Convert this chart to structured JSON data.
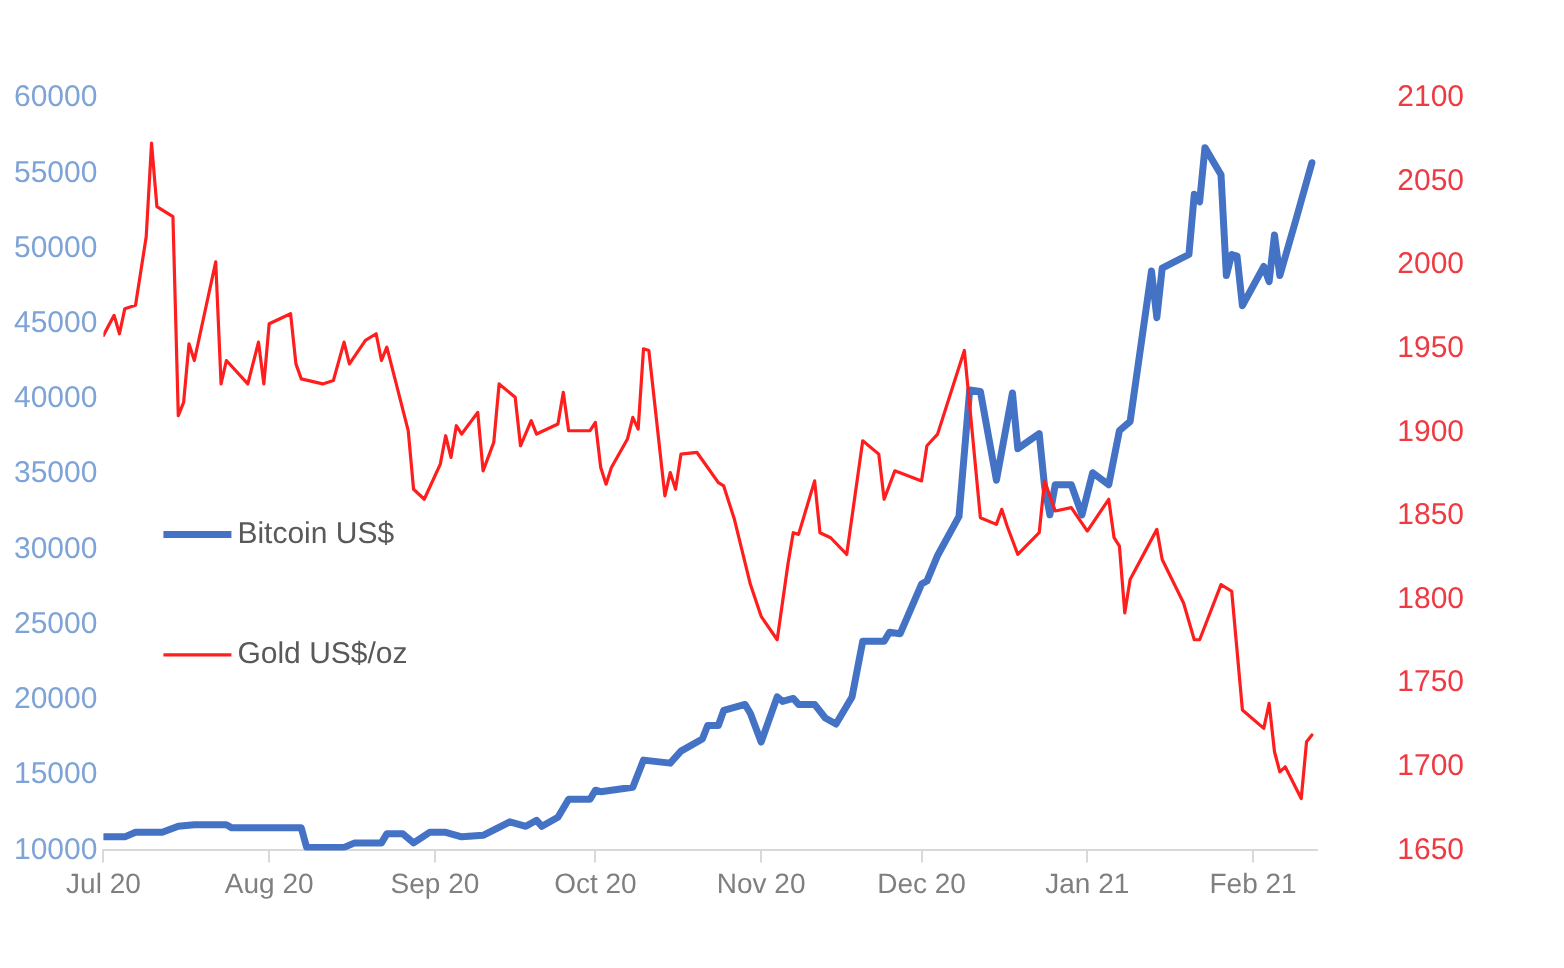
{
  "chart_data": {
    "type": "line",
    "legend": "left",
    "grid": false,
    "marker": "none",
    "line_style": "solid",
    "xlim": [
      "2020-07-01",
      "2021-02-13"
    ],
    "xticks": [
      {
        "value": "2020-07-01",
        "label": "Jul 20"
      },
      {
        "value": "2020-08-01",
        "label": "Aug 20"
      },
      {
        "value": "2020-09-01",
        "label": "Sep 20"
      },
      {
        "value": "2020-10-01",
        "label": "Oct 20"
      },
      {
        "value": "2020-11-01",
        "label": "Nov 20"
      },
      {
        "value": "2020-12-01",
        "label": "Dec 20"
      },
      {
        "value": "2021-01-01",
        "label": "Jan 21"
      },
      {
        "value": "2021-02-01",
        "label": "Feb 21"
      }
    ],
    "ylim": [
      10000,
      60000
    ],
    "yticks": [
      10000,
      15000,
      20000,
      25000,
      30000,
      35000,
      40000,
      45000,
      50000,
      55000,
      60000
    ],
    "y2lim": [
      1650,
      2100
    ],
    "y2ticks": [
      1650,
      1700,
      1750,
      1800,
      1850,
      1900,
      1950,
      2000,
      2050,
      2100
    ],
    "series": [
      {
        "name": "Bitcoin US$",
        "color": "#4472c4",
        "axis": "y",
        "x": [
          "2020-07-01",
          "2020-07-05",
          "2020-07-07",
          "2020-07-12",
          "2020-07-15",
          "2020-07-18",
          "2020-07-24",
          "2020-07-25",
          "2020-08-07",
          "2020-08-08",
          "2020-08-15",
          "2020-08-17",
          "2020-08-22",
          "2020-08-23",
          "2020-08-26",
          "2020-08-28",
          "2020-08-31",
          "2020-09-03",
          "2020-09-06",
          "2020-09-10",
          "2020-09-15",
          "2020-09-18",
          "2020-09-20",
          "2020-09-21",
          "2020-09-24",
          "2020-09-26",
          "2020-09-30",
          "2020-10-01",
          "2020-10-02",
          "2020-10-08",
          "2020-10-10",
          "2020-10-15",
          "2020-10-17",
          "2020-10-21",
          "2020-10-22",
          "2020-10-24",
          "2020-10-25",
          "2020-10-29",
          "2020-10-30",
          "2020-11-01",
          "2020-11-04",
          "2020-11-05",
          "2020-11-07",
          "2020-11-08",
          "2020-11-11",
          "2020-11-13",
          "2020-11-15",
          "2020-11-18",
          "2020-11-20",
          "2020-11-24",
          "2020-11-25",
          "2020-11-27",
          "2020-12-01",
          "2020-12-02",
          "2020-12-04",
          "2020-12-08",
          "2020-12-10",
          "2020-12-12",
          "2020-12-15",
          "2020-12-18",
          "2020-12-19",
          "2020-12-23",
          "2020-12-24",
          "2020-12-25",
          "2020-12-26",
          "2020-12-29",
          "2020-12-31",
          "2021-01-02",
          "2021-01-05",
          "2021-01-07",
          "2021-01-09",
          "2021-01-13",
          "2021-01-14",
          "2021-01-15",
          "2021-01-20",
          "2021-01-21",
          "2021-01-22",
          "2021-01-23",
          "2021-01-26",
          "2021-01-27",
          "2021-01-28",
          "2021-01-29",
          "2021-01-30",
          "2021-02-03",
          "2021-02-04",
          "2021-02-05",
          "2021-02-06",
          "2021-02-09",
          "2021-02-12"
        ],
        "values": [
          10900,
          10900,
          11200,
          11200,
          11600,
          11700,
          11700,
          11500,
          11500,
          10200,
          10200,
          10500,
          10500,
          11100,
          11100,
          10500,
          11200,
          11200,
          10900,
          11000,
          11900,
          11600,
          12000,
          11600,
          12200,
          13400,
          13400,
          14000,
          13900,
          14200,
          16000,
          15800,
          16600,
          17400,
          18300,
          18300,
          19300,
          19700,
          19100,
          17200,
          20200,
          19900,
          20100,
          19700,
          19700,
          18800,
          18400,
          20200,
          23900,
          23900,
          24500,
          24400,
          27700,
          27900,
          29600,
          32200,
          40600,
          40500,
          34600,
          40400,
          36700,
          37700,
          34200,
          32300,
          34300,
          34300,
          32300,
          35100,
          34300,
          37900,
          38500,
          48500,
          45400,
          48700,
          49600,
          53600,
          53100,
          56700,
          54900,
          48200,
          49600,
          49500,
          46200,
          48800,
          47800,
          50900,
          48200,
          51900,
          55700
        ]
      },
      {
        "name": "Gold US$/oz",
        "color": "#ff1e1e",
        "axis": "y2",
        "x": [
          "2020-07-01",
          "2020-07-03",
          "2020-07-04",
          "2020-07-05",
          "2020-07-07",
          "2020-07-09",
          "2020-07-10",
          "2020-07-11",
          "2020-07-14",
          "2020-07-15",
          "2020-07-16",
          "2020-07-17",
          "2020-07-18",
          "2020-07-22",
          "2020-07-23",
          "2020-07-24",
          "2020-07-28",
          "2020-07-30",
          "2020-07-31",
          "2020-08-01",
          "2020-08-05",
          "2020-08-06",
          "2020-08-07",
          "2020-08-11",
          "2020-08-13",
          "2020-08-15",
          "2020-08-16",
          "2020-08-19",
          "2020-08-21",
          "2020-08-22",
          "2020-08-23",
          "2020-08-27",
          "2020-08-28",
          "2020-08-30",
          "2020-09-02",
          "2020-09-03",
          "2020-09-04",
          "2020-09-05",
          "2020-09-06",
          "2020-09-09",
          "2020-09-10",
          "2020-09-12",
          "2020-09-13",
          "2020-09-16",
          "2020-09-17",
          "2020-09-19",
          "2020-09-20",
          "2020-09-24",
          "2020-09-25",
          "2020-09-26",
          "2020-09-30",
          "2020-10-01",
          "2020-10-02",
          "2020-10-03",
          "2020-10-04",
          "2020-10-07",
          "2020-10-08",
          "2020-10-09",
          "2020-10-10",
          "2020-10-11",
          "2020-10-14",
          "2020-10-15",
          "2020-10-16",
          "2020-10-17",
          "2020-10-20",
          "2020-10-22",
          "2020-10-24",
          "2020-10-25",
          "2020-10-27",
          "2020-10-30",
          "2020-11-01",
          "2020-11-04",
          "2020-11-06",
          "2020-11-07",
          "2020-11-08",
          "2020-11-11",
          "2020-11-12",
          "2020-11-14",
          "2020-11-17",
          "2020-11-20",
          "2020-11-23",
          "2020-11-24",
          "2020-11-26",
          "2020-12-01",
          "2020-12-02",
          "2020-12-04",
          "2020-12-09",
          "2020-12-10",
          "2020-12-12",
          "2020-12-15",
          "2020-12-16",
          "2020-12-17",
          "2020-12-19",
          "2020-12-23",
          "2020-12-24",
          "2020-12-26",
          "2020-12-29",
          "2021-01-01",
          "2021-01-05",
          "2021-01-06",
          "2021-01-07",
          "2021-01-08",
          "2021-01-09",
          "2021-01-14",
          "2021-01-15",
          "2021-01-19",
          "2021-01-21",
          "2021-01-22",
          "2021-01-26",
          "2021-01-28",
          "2021-01-30",
          "2021-02-03",
          "2021-02-04",
          "2021-02-05",
          "2021-02-06",
          "2021-02-07",
          "2021-02-10",
          "2021-02-11",
          "2021-02-12"
        ],
        "values": [
          1958,
          1970,
          1959,
          1974,
          1976,
          2017,
          2073,
          2035,
          2029,
          1910,
          1918,
          1953,
          1943,
          2002,
          1929,
          1943,
          1929,
          1954,
          1929,
          1965,
          1971,
          1941,
          1932,
          1929,
          1931,
          1954,
          1941,
          1955,
          1959,
          1943,
          1951,
          1901,
          1866,
          1860,
          1881,
          1898,
          1885,
          1904,
          1899,
          1912,
          1877,
          1894,
          1929,
          1921,
          1892,
          1907,
          1899,
          1905,
          1924,
          1901,
          1901,
          1906,
          1879,
          1869,
          1879,
          1896,
          1909,
          1902,
          1950,
          1949,
          1862,
          1876,
          1866,
          1887,
          1888,
          1879,
          1870,
          1868,
          1848,
          1809,
          1790,
          1776,
          1821,
          1840,
          1839,
          1871,
          1840,
          1837,
          1827,
          1895,
          1887,
          1860,
          1877,
          1871,
          1892,
          1899,
          1949,
          1916,
          1849,
          1845,
          1854,
          1844,
          1827,
          1840,
          1871,
          1853,
          1855,
          1841,
          1860,
          1837,
          1832,
          1792,
          1812,
          1842,
          1824,
          1798,
          1776,
          1776,
          1809,
          1805,
          1734,
          1723,
          1738,
          1709,
          1697,
          1700,
          1681,
          1715,
          1719
        ]
      }
    ]
  }
}
